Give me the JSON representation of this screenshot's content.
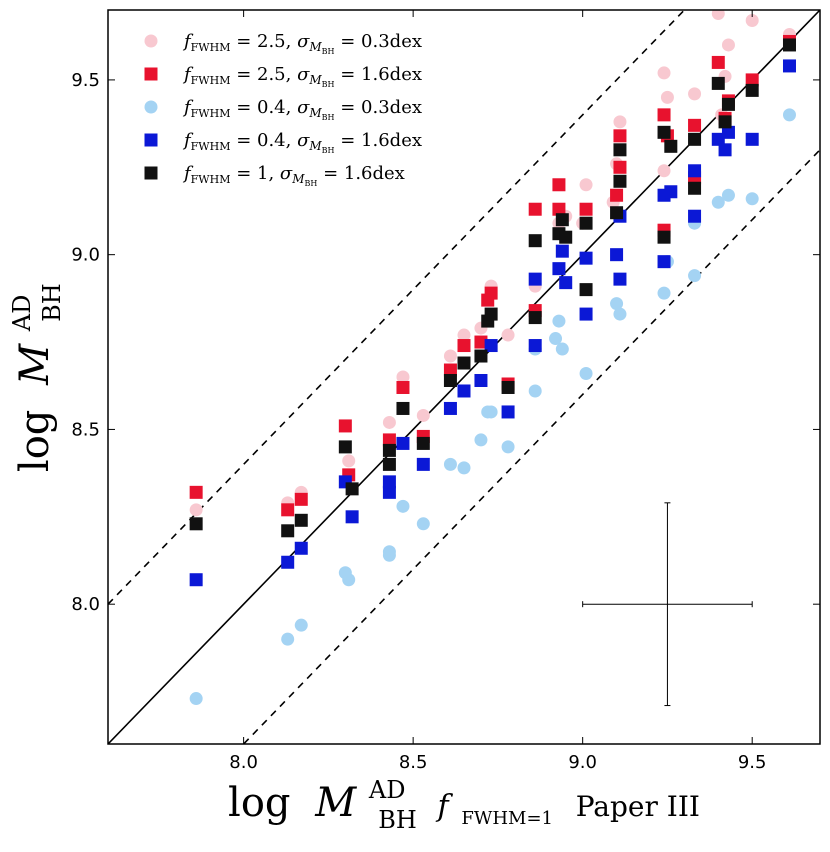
{
  "chart_data": {
    "type": "scatter",
    "xlim": [
      7.6,
      9.7
    ],
    "ylim": [
      7.6,
      9.7
    ],
    "x_ticks": [
      8.0,
      8.5,
      9.0,
      9.5
    ],
    "y_ticks": [
      8.0,
      8.5,
      9.0,
      9.5
    ],
    "x_tick_labels": [
      "8.0",
      "8.5",
      "9.0",
      "9.5"
    ],
    "y_tick_labels": [
      "8.0",
      "8.5",
      "9.0",
      "9.5"
    ],
    "xlabel": {
      "prefix": "log",
      "symbol": "M",
      "sup": "AD",
      "sub": "BH",
      "f_sub": "FWHM=1",
      "suffix": "Paper III"
    },
    "ylabel": {
      "prefix": "log",
      "symbol": "M",
      "sup": "AD",
      "sub": "BH"
    },
    "reference_lines": [
      {
        "name": "one-to-one",
        "style": "solid",
        "offset": 0.0
      },
      {
        "name": "upper-0.4dex",
        "style": "dashed",
        "offset": 0.4
      },
      {
        "name": "lower-0.4dex",
        "style": "dashed",
        "offset": -0.4
      }
    ],
    "error_cross": {
      "x": 9.25,
      "y": 8.0,
      "xerr": 0.25,
      "yerr": 0.29
    },
    "legend_position": "top-left",
    "series": [
      {
        "name": "fFWHM = 2.5, sigma_MBH = 0.3dex",
        "legend": {
          "f": "2.5",
          "sigma": "0.3dex"
        },
        "color": "#f8c8d0",
        "marker": "circle",
        "points": [
          [
            7.86,
            8.27
          ],
          [
            8.13,
            8.29
          ],
          [
            8.17,
            8.32
          ],
          [
            8.31,
            8.41
          ],
          [
            8.43,
            8.52
          ],
          [
            8.47,
            8.65
          ],
          [
            8.53,
            8.54
          ],
          [
            8.61,
            8.71
          ],
          [
            8.65,
            8.77
          ],
          [
            8.7,
            8.79
          ],
          [
            8.73,
            8.91
          ],
          [
            8.78,
            8.77
          ],
          [
            8.86,
            8.91
          ],
          [
            8.93,
            9.09
          ],
          [
            8.95,
            9.11
          ],
          [
            9.0,
            9.09
          ],
          [
            9.01,
            9.2
          ],
          [
            9.09,
            9.15
          ],
          [
            9.1,
            9.26
          ],
          [
            9.11,
            9.38
          ],
          [
            9.24,
            9.24
          ],
          [
            9.24,
            9.52
          ],
          [
            9.25,
            9.45
          ],
          [
            9.33,
            9.46
          ],
          [
            9.4,
            9.69
          ],
          [
            9.41,
            9.4
          ],
          [
            9.42,
            9.51
          ],
          [
            9.43,
            9.6
          ],
          [
            9.5,
            9.67
          ],
          [
            9.61,
            9.63
          ]
        ]
      },
      {
        "name": "fFWHM = 2.5, sigma_MBH = 1.6dex",
        "legend": {
          "f": "2.5",
          "sigma": "1.6dex"
        },
        "color": "#e8122e",
        "marker": "square",
        "points": [
          [
            7.86,
            8.32
          ],
          [
            8.13,
            8.27
          ],
          [
            8.17,
            8.3
          ],
          [
            8.3,
            8.51
          ],
          [
            8.31,
            8.37
          ],
          [
            8.43,
            8.47
          ],
          [
            8.47,
            8.62
          ],
          [
            8.53,
            8.48
          ],
          [
            8.61,
            8.67
          ],
          [
            8.65,
            8.74
          ],
          [
            8.7,
            8.75
          ],
          [
            8.72,
            8.87
          ],
          [
            8.73,
            8.89
          ],
          [
            8.78,
            8.63
          ],
          [
            8.86,
            9.13
          ],
          [
            8.86,
            8.84
          ],
          [
            8.93,
            9.2
          ],
          [
            8.93,
            9.13
          ],
          [
            9.01,
            9.13
          ],
          [
            9.1,
            9.17
          ],
          [
            9.11,
            9.34
          ],
          [
            9.11,
            9.25
          ],
          [
            9.24,
            9.07
          ],
          [
            9.24,
            9.4
          ],
          [
            9.25,
            9.34
          ],
          [
            9.33,
            9.37
          ],
          [
            9.33,
            9.22
          ],
          [
            9.4,
            9.55
          ],
          [
            9.42,
            9.39
          ],
          [
            9.43,
            9.44
          ],
          [
            9.5,
            9.5
          ],
          [
            9.61,
            9.61
          ]
        ]
      },
      {
        "name": "fFWHM = 0.4, sigma_MBH = 0.3dex",
        "legend": {
          "f": "0.4",
          "sigma": "0.3dex"
        },
        "color": "#a4d3f3",
        "marker": "circle",
        "points": [
          [
            7.86,
            7.73
          ],
          [
            8.13,
            7.9
          ],
          [
            8.17,
            7.94
          ],
          [
            8.3,
            8.09
          ],
          [
            8.31,
            8.07
          ],
          [
            8.43,
            8.14
          ],
          [
            8.43,
            8.15
          ],
          [
            8.47,
            8.28
          ],
          [
            8.53,
            8.23
          ],
          [
            8.61,
            8.4
          ],
          [
            8.65,
            8.39
          ],
          [
            8.7,
            8.47
          ],
          [
            8.72,
            8.55
          ],
          [
            8.73,
            8.55
          ],
          [
            8.78,
            8.45
          ],
          [
            8.86,
            8.61
          ],
          [
            8.86,
            8.73
          ],
          [
            8.92,
            8.76
          ],
          [
            8.93,
            8.81
          ],
          [
            8.94,
            8.73
          ],
          [
            9.01,
            8.66
          ],
          [
            9.1,
            8.86
          ],
          [
            9.11,
            8.83
          ],
          [
            9.24,
            8.89
          ],
          [
            9.25,
            8.98
          ],
          [
            9.33,
            8.94
          ],
          [
            9.33,
            9.09
          ],
          [
            9.4,
            9.15
          ],
          [
            9.43,
            9.17
          ],
          [
            9.5,
            9.16
          ],
          [
            9.61,
            9.4
          ]
        ]
      },
      {
        "name": "fFWHM = 0.4, sigma_MBH = 1.6dex",
        "legend": {
          "f": "0.4",
          "sigma": "1.6dex"
        },
        "color": "#0b18d6",
        "marker": "square",
        "points": [
          [
            7.86,
            8.07
          ],
          [
            8.13,
            8.12
          ],
          [
            8.17,
            8.16
          ],
          [
            8.3,
            8.35
          ],
          [
            8.32,
            8.25
          ],
          [
            8.43,
            8.32
          ],
          [
            8.43,
            8.35
          ],
          [
            8.47,
            8.46
          ],
          [
            8.53,
            8.4
          ],
          [
            8.61,
            8.56
          ],
          [
            8.65,
            8.61
          ],
          [
            8.7,
            8.64
          ],
          [
            8.73,
            8.74
          ],
          [
            8.78,
            8.55
          ],
          [
            8.86,
            8.93
          ],
          [
            8.86,
            8.74
          ],
          [
            8.93,
            8.96
          ],
          [
            8.94,
            9.01
          ],
          [
            8.95,
            8.92
          ],
          [
            9.01,
            8.83
          ],
          [
            9.01,
            8.99
          ],
          [
            9.1,
            9.0
          ],
          [
            9.11,
            8.93
          ],
          [
            9.11,
            9.11
          ],
          [
            9.24,
            8.98
          ],
          [
            9.24,
            9.17
          ],
          [
            9.26,
            9.18
          ],
          [
            9.33,
            9.11
          ],
          [
            9.33,
            9.24
          ],
          [
            9.4,
            9.33
          ],
          [
            9.42,
            9.3
          ],
          [
            9.43,
            9.35
          ],
          [
            9.5,
            9.33
          ],
          [
            9.61,
            9.54
          ]
        ]
      },
      {
        "name": "fFWHM = 1, sigma_MBH = 1.6dex",
        "legend": {
          "f": "1",
          "sigma": "1.6dex"
        },
        "color": "#111111",
        "marker": "square",
        "points": [
          [
            7.86,
            8.23
          ],
          [
            8.13,
            8.21
          ],
          [
            8.17,
            8.24
          ],
          [
            8.3,
            8.45
          ],
          [
            8.32,
            8.33
          ],
          [
            8.43,
            8.4
          ],
          [
            8.43,
            8.44
          ],
          [
            8.47,
            8.56
          ],
          [
            8.53,
            8.46
          ],
          [
            8.61,
            8.64
          ],
          [
            8.65,
            8.69
          ],
          [
            8.7,
            8.71
          ],
          [
            8.72,
            8.81
          ],
          [
            8.73,
            8.83
          ],
          [
            8.78,
            8.62
          ],
          [
            8.86,
            9.04
          ],
          [
            8.86,
            8.82
          ],
          [
            8.93,
            9.06
          ],
          [
            8.94,
            9.1
          ],
          [
            8.95,
            9.05
          ],
          [
            9.01,
            8.9
          ],
          [
            9.01,
            9.09
          ],
          [
            9.1,
            9.12
          ],
          [
            9.11,
            9.3
          ],
          [
            9.11,
            9.21
          ],
          [
            9.24,
            9.05
          ],
          [
            9.24,
            9.35
          ],
          [
            9.26,
            9.31
          ],
          [
            9.33,
            9.19
          ],
          [
            9.33,
            9.33
          ],
          [
            9.4,
            9.49
          ],
          [
            9.42,
            9.38
          ],
          [
            9.43,
            9.43
          ],
          [
            9.5,
            9.47
          ],
          [
            9.61,
            9.6
          ]
        ]
      }
    ]
  }
}
